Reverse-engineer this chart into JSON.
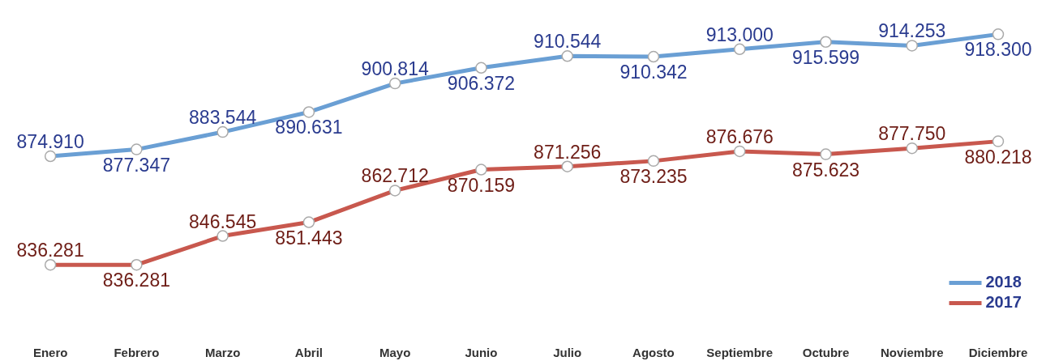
{
  "chart_data": {
    "type": "line",
    "categories": [
      "Enero",
      "Febrero",
      "Marzo",
      "Abril",
      "Mayo",
      "Junio",
      "Julio",
      "Agosto",
      "Septiembre",
      "Octubre",
      "Noviembre",
      "Diciembre"
    ],
    "series": [
      {
        "name": "2018",
        "color": "#6a9fd4",
        "values": [
          874910,
          877347,
          883544,
          890631,
          900814,
          906372,
          910544,
          910342,
          913000,
          915599,
          914253,
          918300
        ],
        "value_labels": [
          "874.910",
          "877.347",
          "883.544",
          "890.631",
          "900.814",
          "906.372",
          "910.544",
          "910.342",
          "913.000",
          "915.599",
          "914.253",
          "918.300"
        ]
      },
      {
        "name": "2017",
        "color": "#c8584e",
        "values": [
          836281,
          836281,
          846545,
          851443,
          862712,
          870159,
          871256,
          873235,
          876676,
          875623,
          877750,
          880218
        ],
        "value_labels": [
          "836.281",
          "836.281",
          "846.545",
          "851.443",
          "862.712",
          "870.159",
          "871.256",
          "873.235",
          "876.676",
          "875.623",
          "877.750",
          "880.218"
        ]
      }
    ],
    "marker": "circle",
    "line_style": "solid",
    "grid": false,
    "legend": "bottom right",
    "tick_labels": "x"
  }
}
